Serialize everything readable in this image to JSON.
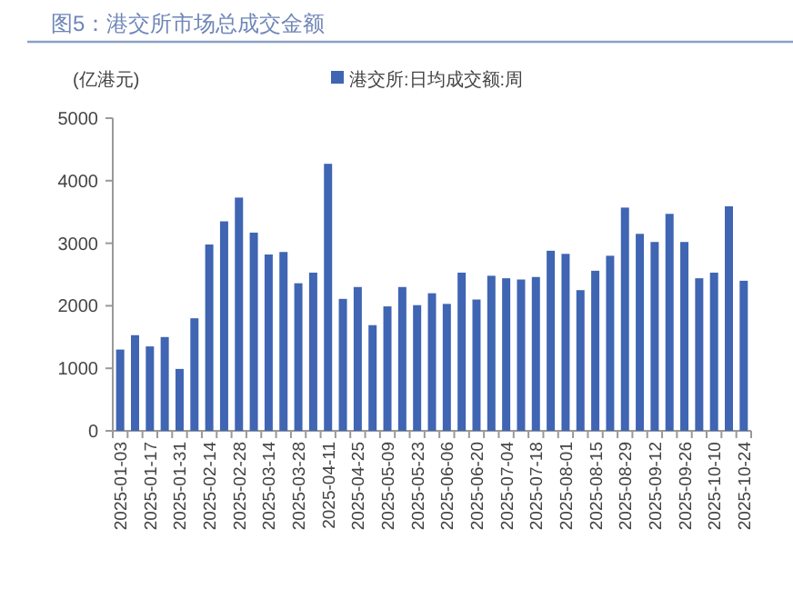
{
  "chart_data": {
    "type": "bar",
    "title": "图5：港交所市场总成交金额",
    "ylabel": "(亿港元)",
    "categories": [
      "2025-01-03",
      null,
      "2025-01-17",
      null,
      "2025-01-31",
      null,
      "2025-02-14",
      null,
      "2025-02-28",
      null,
      "2025-03-14",
      null,
      "2025-03-28",
      null,
      "2025-04-11",
      null,
      "2025-04-25",
      null,
      "2025-05-09",
      null,
      "2025-05-23",
      null,
      "2025-06-06",
      null,
      "2025-06-20",
      null,
      "2025-07-04",
      null,
      "2025-07-18",
      null,
      "2025-08-01",
      null,
      "2025-08-15",
      null,
      "2025-08-29",
      null,
      "2025-09-12",
      null,
      "2025-09-26",
      null,
      "2025-10-10",
      null,
      "2025-10-24"
    ],
    "series": [
      {
        "name": "港交所:日均成交额:周",
        "color": "#3f65b3",
        "values": [
          1300,
          1530,
          1350,
          1500,
          990,
          1800,
          2980,
          3350,
          3730,
          3170,
          2820,
          2860,
          2360,
          2530,
          4270,
          2110,
          2300,
          1690,
          1990,
          2300,
          2010,
          2200,
          2030,
          2530,
          2100,
          2480,
          2440,
          2420,
          2460,
          2880,
          2830,
          2250,
          2560,
          2800,
          3570,
          3150,
          3020,
          3470,
          3020,
          2440,
          2530,
          3590,
          2400
        ]
      }
    ],
    "ylim": [
      0,
      5000
    ],
    "yticks": [
      0,
      1000,
      2000,
      3000,
      4000,
      5000
    ],
    "legend": "top",
    "grid": false
  }
}
